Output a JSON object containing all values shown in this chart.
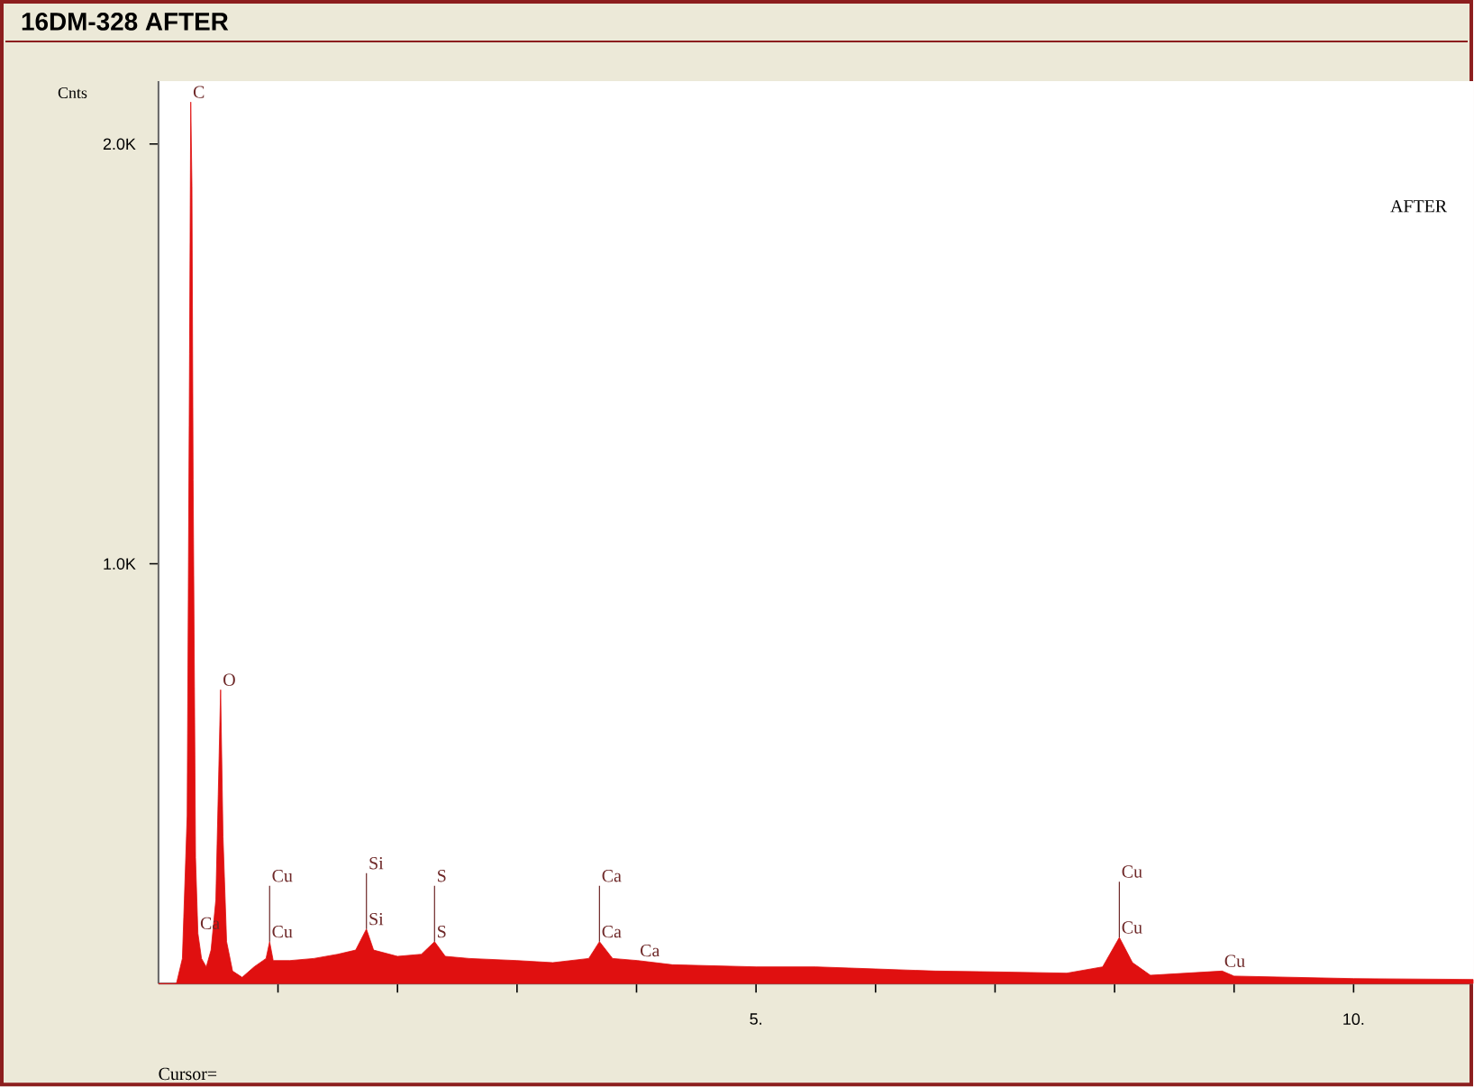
{
  "chart_data": {
    "type": "area",
    "title": "16DM-328 AFTER",
    "ylabel": "Cnts",
    "x": [
      0.0,
      0.15,
      0.2,
      0.24,
      0.26,
      0.27,
      0.28,
      0.29,
      0.31,
      0.33,
      0.36,
      0.4,
      0.44,
      0.48,
      0.5,
      0.52,
      0.54,
      0.57,
      0.62,
      0.7,
      0.8,
      0.9,
      0.93,
      0.96,
      1.1,
      1.3,
      1.5,
      1.65,
      1.74,
      1.8,
      2.0,
      2.2,
      2.31,
      2.4,
      2.6,
      3.0,
      3.3,
      3.6,
      3.69,
      3.8,
      4.01,
      4.3,
      5.0,
      5.5,
      6.0,
      6.5,
      7.0,
      7.6,
      7.9,
      8.04,
      8.15,
      8.3,
      8.9,
      9.0,
      10.0,
      11.0
    ],
    "series": [
      {
        "color": "#e01010",
        "values": [
          0,
          0,
          60,
          400,
          1500,
          2100,
          1900,
          1200,
          300,
          120,
          60,
          40,
          80,
          200,
          450,
          700,
          350,
          100,
          30,
          15,
          40,
          60,
          100,
          55,
          55,
          60,
          70,
          80,
          130,
          80,
          65,
          70,
          100,
          65,
          60,
          55,
          50,
          60,
          100,
          60,
          55,
          45,
          40,
          40,
          35,
          30,
          28,
          25,
          40,
          110,
          50,
          20,
          30,
          18,
          12,
          10
        ]
      }
    ],
    "xlim": [
      0,
      11
    ],
    "ylim": [
      0,
      2150
    ],
    "xticks": [
      {
        "value": 1,
        "label": null
      },
      {
        "value": 2,
        "label": null
      },
      {
        "value": 3,
        "label": null
      },
      {
        "value": 4,
        "label": null
      },
      {
        "value": 5,
        "label": "5."
      },
      {
        "value": 6,
        "label": null
      },
      {
        "value": 7,
        "label": null
      },
      {
        "value": 8,
        "label": null
      },
      {
        "value": 9,
        "label": null
      },
      {
        "value": 10,
        "label": "10."
      }
    ],
    "yticks": [
      {
        "value": 1000,
        "label": "1.0K"
      },
      {
        "value": 2000,
        "label": "2.0K"
      }
    ],
    "annotations": [
      "AFTER",
      "Cursor=",
      {
        "text": "C",
        "x": 0.27,
        "y": 2100
      },
      {
        "text": "O",
        "x": 0.52,
        "y": 700
      },
      {
        "text": "Ca",
        "x": 0.33,
        "y": 120
      },
      {
        "text": "Cu",
        "x": 0.93,
        "y": 100
      },
      {
        "text": "Si",
        "x": 1.74,
        "y": 130
      },
      {
        "text": "S",
        "x": 2.31,
        "y": 100
      },
      {
        "text": "Ca",
        "x": 3.69,
        "y": 100
      },
      {
        "text": "Cu",
        "x": 8.04,
        "y": 110
      },
      {
        "text": "Cu",
        "x": 0.93,
        "y": 100
      },
      {
        "text": "Si",
        "x": 1.74,
        "y": 130
      },
      {
        "text": "S",
        "x": 2.31,
        "y": 100
      },
      {
        "text": "Ca",
        "x": 3.69,
        "y": 100
      },
      {
        "text": "Ca",
        "x": 4.01,
        "y": 55
      },
      {
        "text": "Cu",
        "x": 8.04,
        "y": 110
      },
      {
        "text": "Cu",
        "x": 8.9,
        "y": 30
      }
    ]
  }
}
